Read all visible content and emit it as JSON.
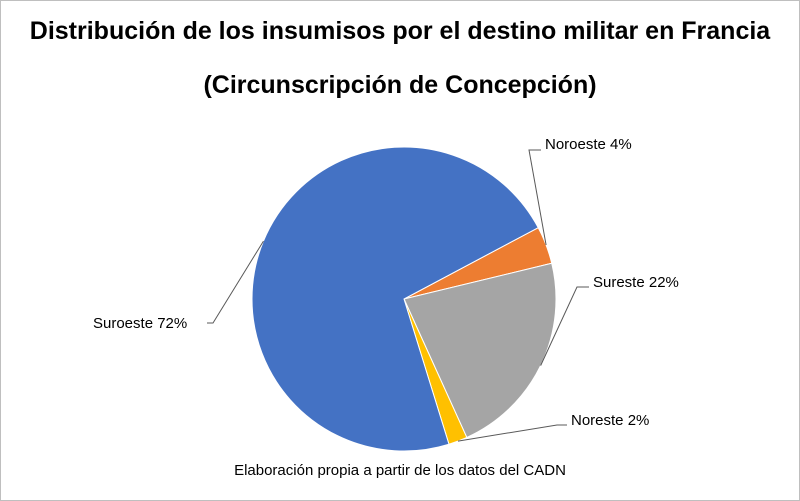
{
  "chart_data": {
    "type": "pie",
    "title": "Distribución de los insumisos por el destino militar en Francia",
    "subtitle": "(Circunscripción de Concepción)",
    "source": "Elaboración propia a partir de los datos del CADN",
    "slices": [
      {
        "label": "Noroeste",
        "value": 4,
        "display": "Noroeste 4%",
        "color": "#ED7D31"
      },
      {
        "label": "Sureste",
        "value": 22,
        "display": "Sureste 22%",
        "color": "#A5A5A5"
      },
      {
        "label": "Noreste",
        "value": 2,
        "display": "Noreste 2%",
        "color": "#FFC000"
      },
      {
        "label": "Suroeste",
        "value": 72,
        "display": "Suroeste 72%",
        "color": "#4472C4"
      }
    ],
    "legend": "none",
    "data_labels": "outside with leader lines"
  }
}
